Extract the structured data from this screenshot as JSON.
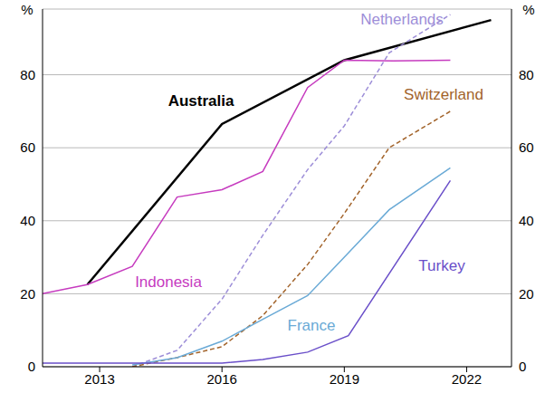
{
  "chart_data": {
    "type": "line",
    "y_label": "%",
    "xlim": [
      2011.6,
      2023.1
    ],
    "xticks": [
      2013,
      2016,
      2019,
      2022
    ],
    "ylim": [
      0,
      98
    ],
    "yticks": [
      0,
      20,
      40,
      60,
      80
    ],
    "grid": true,
    "series": [
      {
        "name": "Australia",
        "color": "#000000",
        "line_style": "solid",
        "x": [
          2012.7,
          2016.0,
          2019.0,
          2022.6
        ],
        "values": [
          22.5,
          66.5,
          84,
          95
        ]
      },
      {
        "name": "Indonesia",
        "color": "#c63bbf",
        "line_style": "solid",
        "x": [
          2011.6,
          2012.7,
          2013.8,
          2014.9,
          2016.0,
          2017.0,
          2018.1,
          2019.0,
          2020.2,
          2021.6
        ],
        "values": [
          20,
          22.5,
          27.5,
          46.5,
          48.5,
          53.5,
          76.5,
          84,
          83.8,
          84
        ]
      },
      {
        "name": "Netherlands",
        "color": "#9d8ed8",
        "line_style": "dashed",
        "x": [
          2013.8,
          2014.9,
          2016.0,
          2017.0,
          2018.1,
          2019.0,
          2020.1,
          2021.6
        ],
        "values": [
          0,
          4.5,
          18.5,
          36,
          54,
          66,
          86,
          96.5
        ]
      },
      {
        "name": "Switzerland",
        "color": "#a2632a",
        "line_style": "dashed",
        "x": [
          2013.8,
          2014.9,
          2016.0,
          2017.0,
          2018.1,
          2019.0,
          2020.1,
          2021.6
        ],
        "values": [
          0,
          2.5,
          5.5,
          14,
          28,
          42,
          60,
          70
        ]
      },
      {
        "name": "France",
        "color": "#6aaad6",
        "line_style": "solid",
        "x": [
          2013.8,
          2014.9,
          2016.0,
          2017.0,
          2018.1,
          2019.0,
          2020.1,
          2021.6
        ],
        "values": [
          0.5,
          2.5,
          7,
          13,
          19.5,
          30,
          43,
          54.5
        ]
      },
      {
        "name": "Turkey",
        "color": "#6a4fc9",
        "line_style": "solid",
        "x": [
          2011.6,
          2013.8,
          2016.0,
          2017.0,
          2018.1,
          2019.1,
          2021.6
        ],
        "values": [
          1,
          1,
          1,
          2,
          4,
          8.5,
          51
        ]
      }
    ]
  }
}
